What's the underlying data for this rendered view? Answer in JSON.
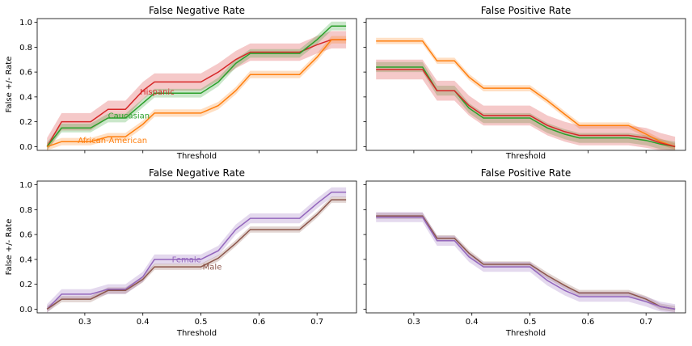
{
  "chart_data": [
    {
      "type": "line",
      "title": "False Negative Rate",
      "xlabel": "Threshold",
      "ylabel": "False +/- Rate",
      "xlim": [
        0.218,
        0.768
      ],
      "ylim": [
        -0.03,
        1.03
      ],
      "xticks": [
        "0.3",
        "0.4",
        "0.5",
        "0.6",
        "0.7"
      ],
      "yticks": [
        "0.0",
        "0.2",
        "0.4",
        "0.6",
        "0.8",
        "1.0"
      ],
      "show_xtick_labels": false,
      "show_yaxis_labels": true,
      "grid": false,
      "series": [
        {
          "name": "Hispanic",
          "color": "#d62728",
          "x": [
            0.235,
            0.26,
            0.31,
            0.34,
            0.37,
            0.4,
            0.42,
            0.5,
            0.53,
            0.56,
            0.585,
            0.67,
            0.7,
            0.725,
            0.75
          ],
          "y": [
            0.0,
            0.2,
            0.2,
            0.3,
            0.3,
            0.45,
            0.52,
            0.52,
            0.6,
            0.7,
            0.76,
            0.76,
            0.82,
            0.86,
            0.86
          ],
          "band": 0.07
        },
        {
          "name": "Caucasian",
          "color": "#2ca02c",
          "x": [
            0.235,
            0.26,
            0.31,
            0.34,
            0.37,
            0.4,
            0.42,
            0.5,
            0.53,
            0.56,
            0.585,
            0.67,
            0.7,
            0.725,
            0.75
          ],
          "y": [
            0.0,
            0.15,
            0.15,
            0.23,
            0.23,
            0.35,
            0.43,
            0.43,
            0.52,
            0.67,
            0.75,
            0.75,
            0.86,
            0.97,
            0.97
          ],
          "band": 0.035
        },
        {
          "name": "African-American",
          "color": "#ff7f0e",
          "x": [
            0.235,
            0.26,
            0.31,
            0.34,
            0.37,
            0.4,
            0.42,
            0.5,
            0.53,
            0.56,
            0.585,
            0.67,
            0.7,
            0.725,
            0.75
          ],
          "y": [
            0.0,
            0.04,
            0.04,
            0.08,
            0.08,
            0.18,
            0.27,
            0.27,
            0.33,
            0.45,
            0.58,
            0.58,
            0.72,
            0.86,
            0.86
          ],
          "band": 0.03
        }
      ],
      "annotations": [
        {
          "text": "Hispanic",
          "x": 0.395,
          "y": 0.44,
          "color": "#d62728"
        },
        {
          "text": "Caucasian",
          "x": 0.34,
          "y": 0.25,
          "color": "#2ca02c"
        },
        {
          "text": "African-American",
          "x": 0.288,
          "y": 0.05,
          "color": "#ff7f0e"
        }
      ]
    },
    {
      "type": "line",
      "title": "False Positive Rate",
      "xlabel": "Threshold",
      "ylabel": "",
      "xlim": [
        0.218,
        0.768
      ],
      "ylim": [
        -0.03,
        1.03
      ],
      "xticks": [
        "0.3",
        "0.4",
        "0.5",
        "0.6",
        "0.7"
      ],
      "yticks": [
        "0.0",
        "0.2",
        "0.4",
        "0.6",
        "0.8",
        "1.0"
      ],
      "show_xtick_labels": false,
      "show_yaxis_labels": false,
      "grid": false,
      "series": [
        {
          "name": "",
          "color": "#ff7f0e",
          "x": [
            0.235,
            0.245,
            0.315,
            0.34,
            0.37,
            0.395,
            0.42,
            0.5,
            0.53,
            0.56,
            0.585,
            0.67,
            0.7,
            0.725,
            0.75
          ],
          "y": [
            0.85,
            0.85,
            0.85,
            0.69,
            0.69,
            0.56,
            0.47,
            0.47,
            0.37,
            0.26,
            0.17,
            0.17,
            0.1,
            0.04,
            0.0
          ],
          "band": 0.025
        },
        {
          "name": "",
          "color": "#2ca02c",
          "x": [
            0.235,
            0.245,
            0.315,
            0.34,
            0.37,
            0.395,
            0.42,
            0.5,
            0.53,
            0.56,
            0.585,
            0.67,
            0.7,
            0.725,
            0.75
          ],
          "y": [
            0.64,
            0.64,
            0.64,
            0.45,
            0.45,
            0.31,
            0.23,
            0.23,
            0.15,
            0.1,
            0.07,
            0.07,
            0.05,
            0.02,
            0.0
          ],
          "band": 0.04
        },
        {
          "name": "",
          "color": "#d62728",
          "x": [
            0.235,
            0.245,
            0.315,
            0.34,
            0.37,
            0.395,
            0.42,
            0.5,
            0.53,
            0.56,
            0.585,
            0.67,
            0.7,
            0.725,
            0.75
          ],
          "y": [
            0.62,
            0.62,
            0.62,
            0.45,
            0.45,
            0.33,
            0.25,
            0.25,
            0.17,
            0.12,
            0.09,
            0.09,
            0.07,
            0.03,
            0.0
          ],
          "band": 0.08
        }
      ],
      "annotations": []
    },
    {
      "type": "line",
      "title": "False Negative Rate",
      "xlabel": "Threshold",
      "ylabel": "False +/- Rate",
      "xlim": [
        0.218,
        0.768
      ],
      "ylim": [
        -0.03,
        1.03
      ],
      "xticks": [
        "0.3",
        "0.4",
        "0.5",
        "0.6",
        "0.7"
      ],
      "yticks": [
        "0.0",
        "0.2",
        "0.4",
        "0.6",
        "0.8",
        "1.0"
      ],
      "show_xtick_labels": true,
      "show_yaxis_labels": true,
      "grid": false,
      "series": [
        {
          "name": "Female",
          "color": "#9467bd",
          "x": [
            0.235,
            0.26,
            0.31,
            0.34,
            0.37,
            0.4,
            0.42,
            0.5,
            0.53,
            0.56,
            0.585,
            0.67,
            0.7,
            0.725,
            0.75
          ],
          "y": [
            0.0,
            0.12,
            0.12,
            0.16,
            0.16,
            0.26,
            0.4,
            0.4,
            0.47,
            0.64,
            0.73,
            0.73,
            0.85,
            0.94,
            0.94
          ],
          "band": 0.04
        },
        {
          "name": "Male",
          "color": "#8c564b",
          "x": [
            0.235,
            0.26,
            0.31,
            0.34,
            0.37,
            0.4,
            0.42,
            0.5,
            0.53,
            0.56,
            0.585,
            0.67,
            0.7,
            0.725,
            0.75
          ],
          "y": [
            0.0,
            0.08,
            0.08,
            0.15,
            0.15,
            0.24,
            0.34,
            0.34,
            0.41,
            0.53,
            0.64,
            0.64,
            0.76,
            0.88,
            0.88
          ],
          "band": 0.025
        }
      ],
      "annotations": [
        {
          "text": "Female",
          "x": 0.45,
          "y": 0.4,
          "color": "#9467bd"
        },
        {
          "text": "Male",
          "x": 0.503,
          "y": 0.34,
          "color": "#8c564b"
        }
      ]
    },
    {
      "type": "line",
      "title": "False Positive Rate",
      "xlabel": "Threshold",
      "ylabel": "",
      "xlim": [
        0.218,
        0.768
      ],
      "ylim": [
        -0.03,
        1.03
      ],
      "xticks": [
        "0.3",
        "0.4",
        "0.5",
        "0.6",
        "0.7"
      ],
      "yticks": [
        "0.0",
        "0.2",
        "0.4",
        "0.6",
        "0.8",
        "1.0"
      ],
      "show_xtick_labels": true,
      "show_yaxis_labels": false,
      "grid": false,
      "series": [
        {
          "name": "",
          "color": "#8c564b",
          "x": [
            0.235,
            0.245,
            0.315,
            0.34,
            0.37,
            0.395,
            0.42,
            0.5,
            0.53,
            0.56,
            0.585,
            0.67,
            0.7,
            0.725,
            0.75
          ],
          "y": [
            0.75,
            0.75,
            0.75,
            0.57,
            0.57,
            0.45,
            0.36,
            0.36,
            0.27,
            0.19,
            0.13,
            0.13,
            0.08,
            0.02,
            0.0
          ],
          "band": 0.025
        },
        {
          "name": "",
          "color": "#9467bd",
          "x": [
            0.235,
            0.245,
            0.315,
            0.34,
            0.37,
            0.395,
            0.42,
            0.5,
            0.53,
            0.56,
            0.585,
            0.67,
            0.7,
            0.725,
            0.75
          ],
          "y": [
            0.74,
            0.74,
            0.74,
            0.55,
            0.55,
            0.42,
            0.34,
            0.34,
            0.23,
            0.15,
            0.1,
            0.1,
            0.06,
            0.02,
            0.0
          ],
          "band": 0.04
        }
      ],
      "annotations": []
    }
  ]
}
